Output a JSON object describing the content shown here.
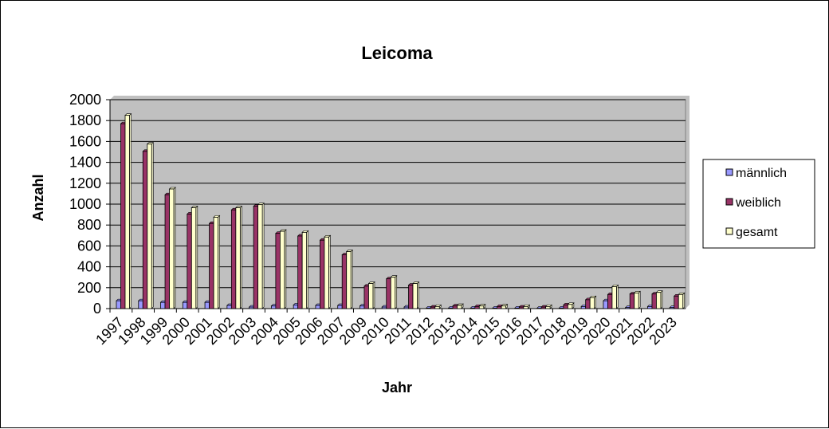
{
  "chart_data": {
    "type": "bar",
    "title": "Leicoma",
    "xlabel": "Jahr",
    "ylabel": "Anzahl",
    "ylim": [
      0,
      2000
    ],
    "yticks": [
      0,
      200,
      400,
      600,
      800,
      1000,
      1200,
      1400,
      1600,
      1800,
      2000
    ],
    "grid": true,
    "legend_position": "right",
    "categories": [
      "1997",
      "1998",
      "1999",
      "2000",
      "2001",
      "2002",
      "2003",
      "2004",
      "2005",
      "2006",
      "2007",
      "2009",
      "2010",
      "2011",
      "2012",
      "2013",
      "2014",
      "2015",
      "2016",
      "2017",
      "2018",
      "2019",
      "2020",
      "2021",
      "2022",
      "2023"
    ],
    "series": [
      {
        "name": "männlich",
        "color": "#9999ff",
        "values": [
          75,
          75,
          60,
          60,
          60,
          30,
          15,
          25,
          35,
          30,
          30,
          25,
          15,
          15,
          5,
          5,
          5,
          5,
          5,
          3,
          5,
          20,
          75,
          10,
          20,
          10
        ]
      },
      {
        "name": "weiblich",
        "color": "#993366",
        "values": [
          1770,
          1505,
          1090,
          905,
          815,
          945,
          980,
          720,
          695,
          655,
          515,
          215,
          285,
          225,
          15,
          25,
          20,
          20,
          15,
          15,
          35,
          85,
          135,
          140,
          140,
          120
        ]
      },
      {
        "name": "gesamt",
        "color": "#ffffcc",
        "values": [
          1850,
          1575,
          1145,
          965,
          875,
          965,
          995,
          740,
          730,
          685,
          545,
          240,
          300,
          240,
          20,
          30,
          25,
          25,
          20,
          20,
          40,
          105,
          210,
          150,
          155,
          135
        ]
      }
    ]
  }
}
